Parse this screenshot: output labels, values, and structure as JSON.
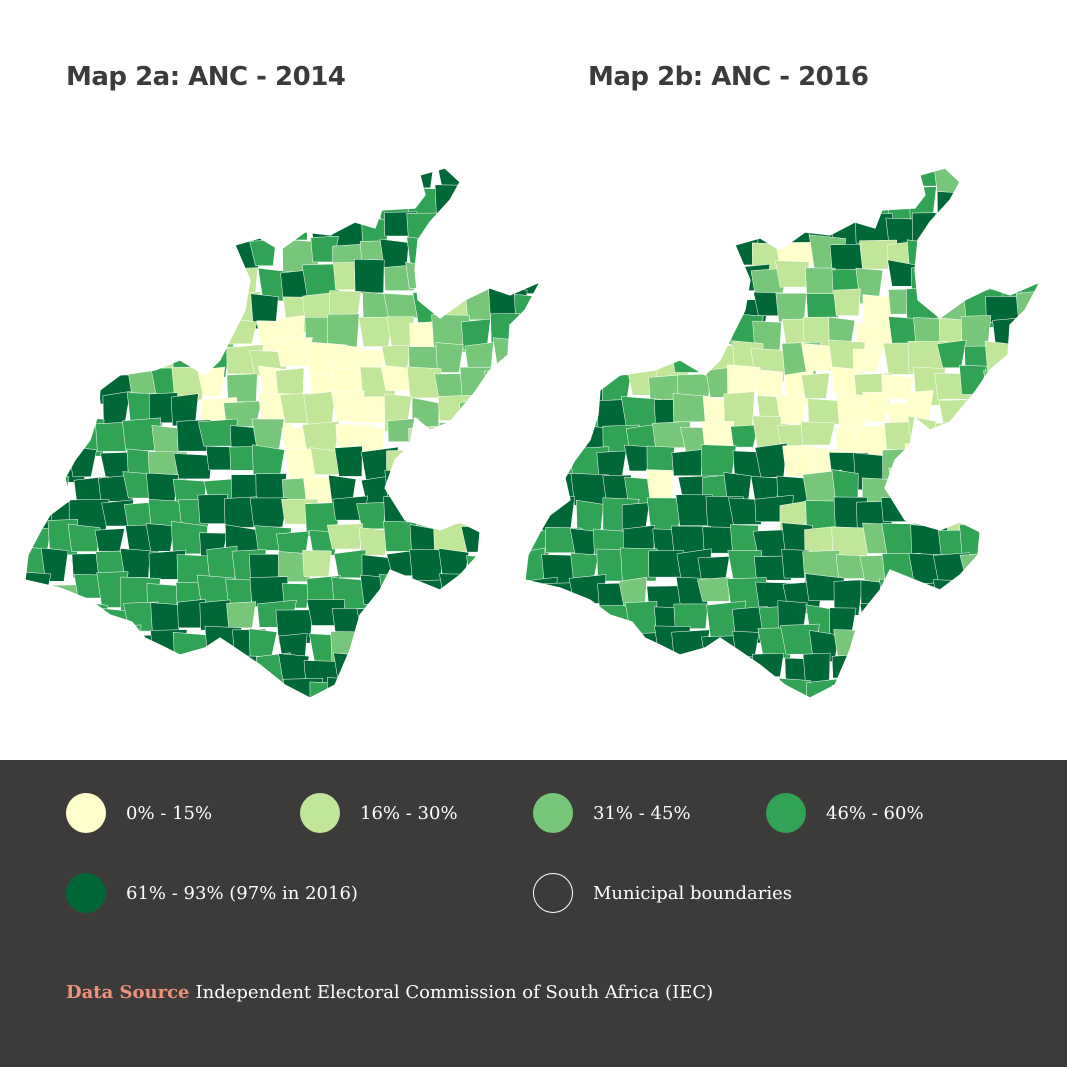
{
  "titles": {
    "map_a": "Map 2a: ANC - 2014",
    "map_b": "Map 2b: ANC - 2016"
  },
  "legend": {
    "items": [
      {
        "label": "0% - 15%",
        "color": "#ffffcc"
      },
      {
        "label": "16% - 30%",
        "color": "#c2e699"
      },
      {
        "label": "31% - 45%",
        "color": "#78c679"
      },
      {
        "label": "46% - 60%",
        "color": "#31a354"
      },
      {
        "label": "61% - 93% (97% in 2016)",
        "color": "#006837"
      },
      {
        "label": "Municipal boundaries",
        "color": "#ffffff"
      }
    ]
  },
  "source": {
    "label": "Data Source",
    "text": "Independent Electoral Commission of South Africa (IEC)"
  },
  "maps": {
    "outline_color": "#ffffff",
    "background": "#ffffff",
    "panel_color": "#3d3b39"
  }
}
